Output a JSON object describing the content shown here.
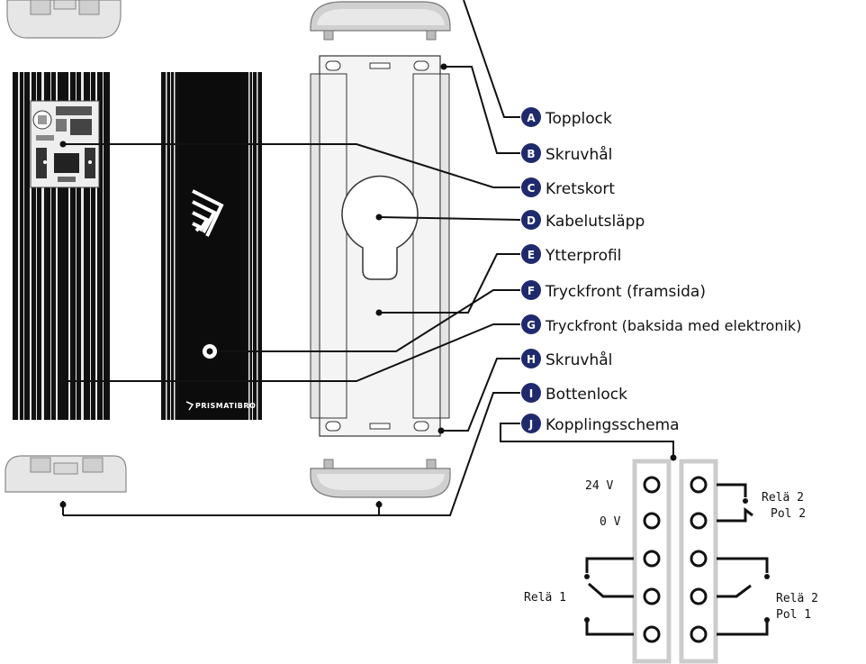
{
  "labels": [
    {
      "letter": "A",
      "text": "Topplock"
    },
    {
      "letter": "B",
      "text": "Skruvhål"
    },
    {
      "letter": "C",
      "text": "Kretskort"
    },
    {
      "letter": "D",
      "text": "Kabelutsläpp"
    },
    {
      "letter": "E",
      "text": "Ytterprofil"
    },
    {
      "letter": "F",
      "text": "Tryckfront (framsida)"
    },
    {
      "letter": "G",
      "text": "Tryckfront (baksida med elektronik)"
    },
    {
      "letter": "H",
      "text": "Skruvhål"
    },
    {
      "letter": "I",
      "text": "Bottenlock"
    },
    {
      "letter": "J",
      "text": "Kopplingsschema"
    }
  ],
  "terminals": {
    "v24": "24 V",
    "v0": "0 V",
    "rele1": "Relä 1",
    "rele2_top": "Relä 2",
    "pol2": "Pol 2",
    "rele2_bottom": "Relä 2",
    "pol1": "Pol 1"
  },
  "brand": "PRISMATIBRO",
  "colors": {
    "badge": "#1f2a6e",
    "dark": "#111111",
    "profile": "#f2f2f2",
    "cap": "#d6d6d6"
  }
}
